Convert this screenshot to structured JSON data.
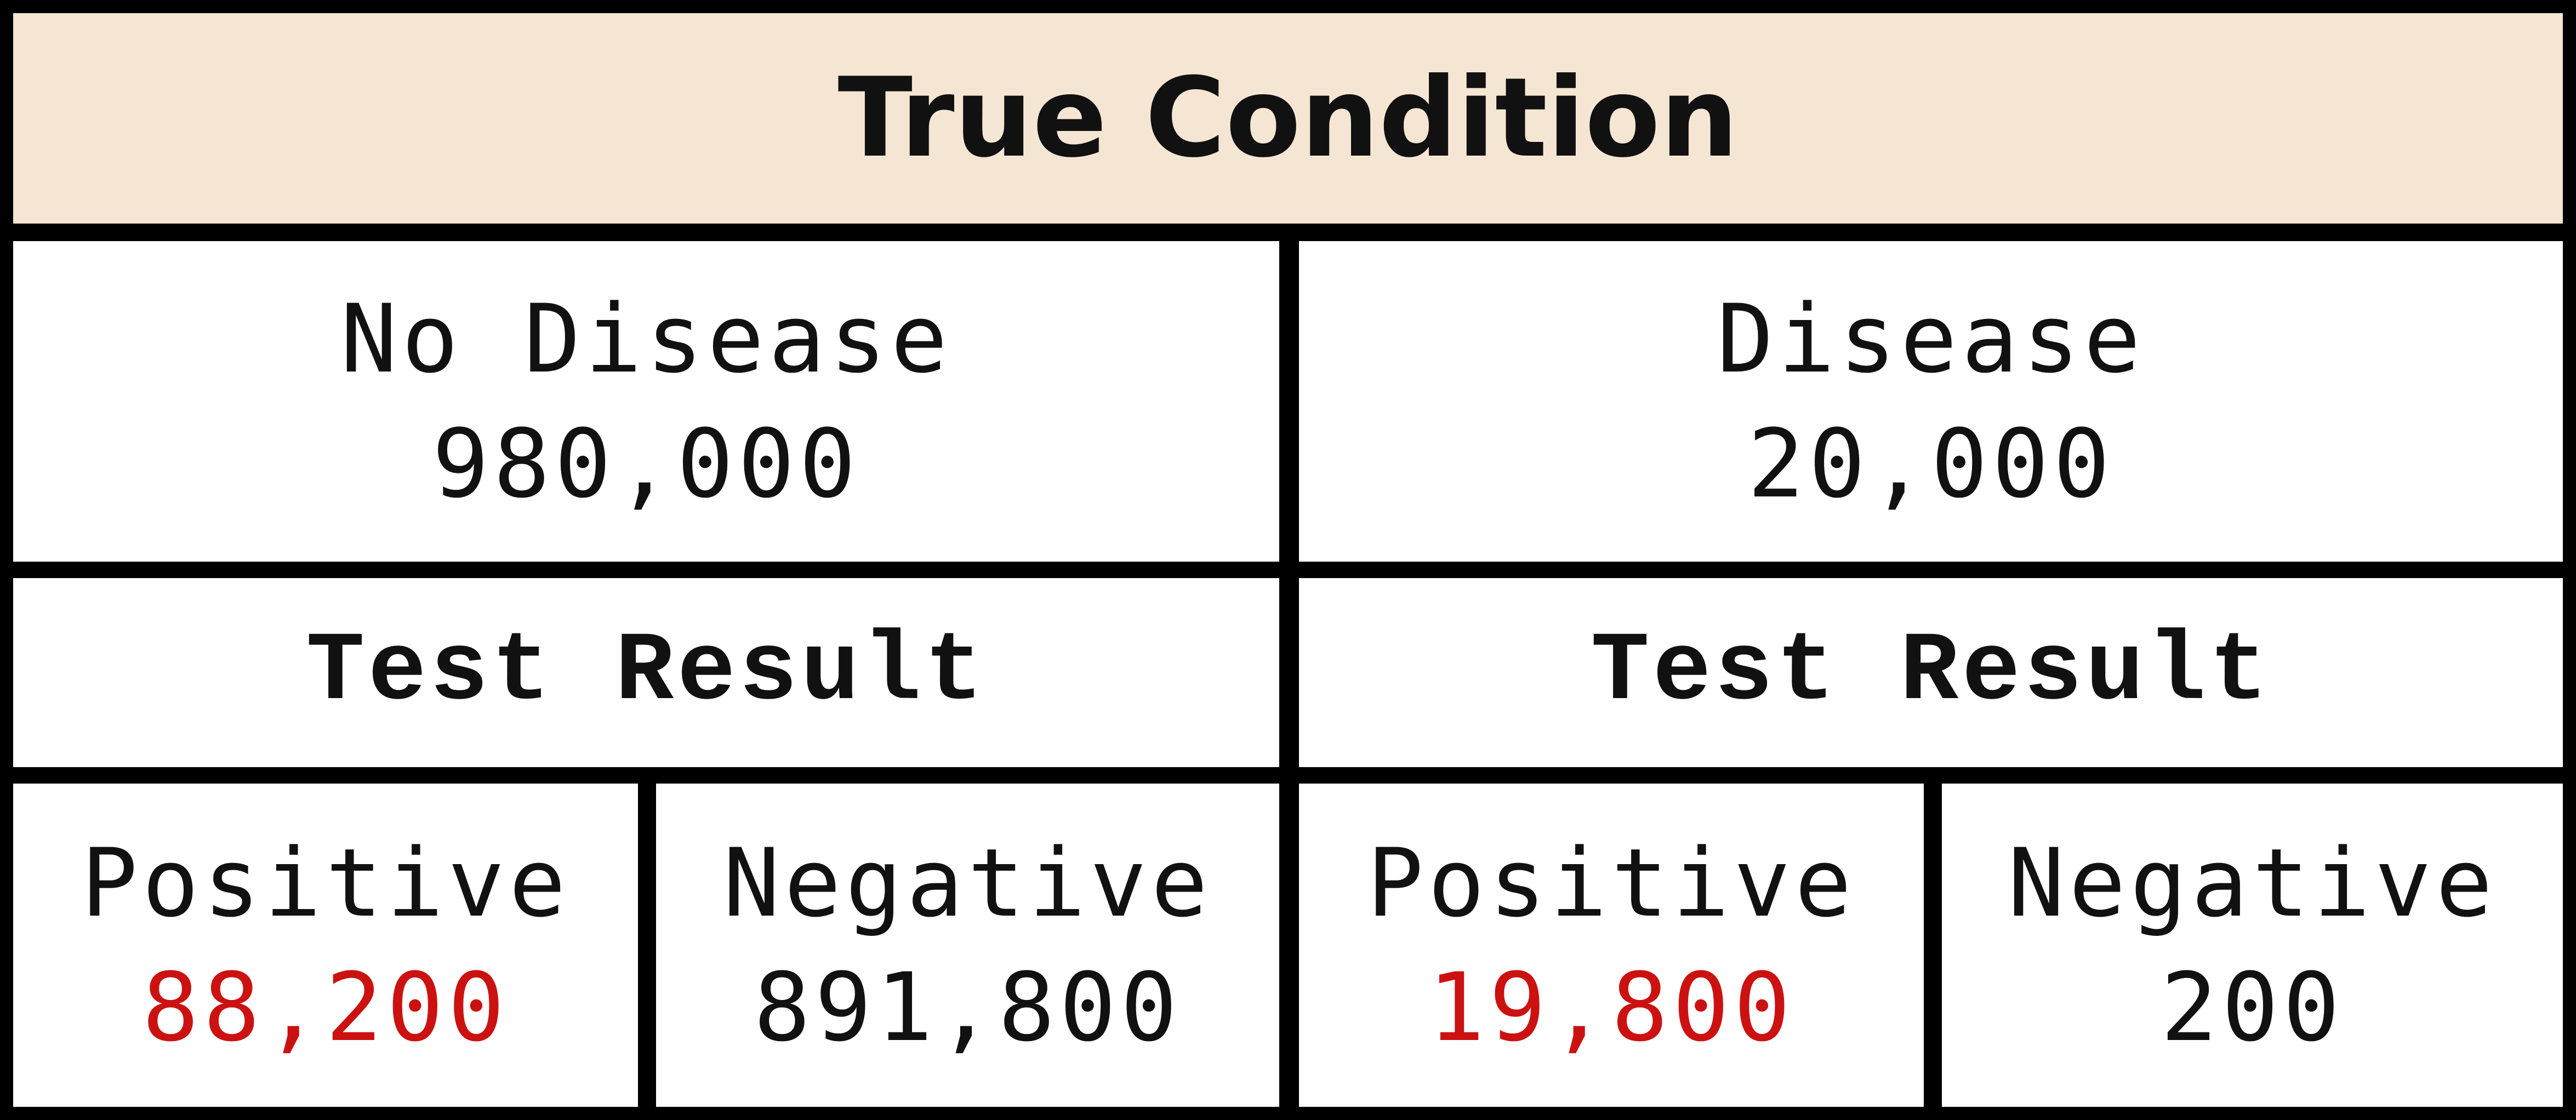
{
  "header": {
    "title": "True Condition"
  },
  "groups": [
    {
      "label": "No Disease",
      "count": "980,000"
    },
    {
      "label": "Disease",
      "count": "20,000"
    }
  ],
  "subheaders": [
    "Test Result",
    "Test Result"
  ],
  "results": [
    {
      "label": "Positive",
      "value": "88,200"
    },
    {
      "label": "Negative",
      "value": "891,800"
    },
    {
      "label": "Positive",
      "value": "19,800"
    },
    {
      "label": "Negative",
      "value": "200"
    }
  ],
  "colors": {
    "header_background": "#f5e6d3",
    "highlight_value": "#cc1111",
    "border": "#000000"
  }
}
